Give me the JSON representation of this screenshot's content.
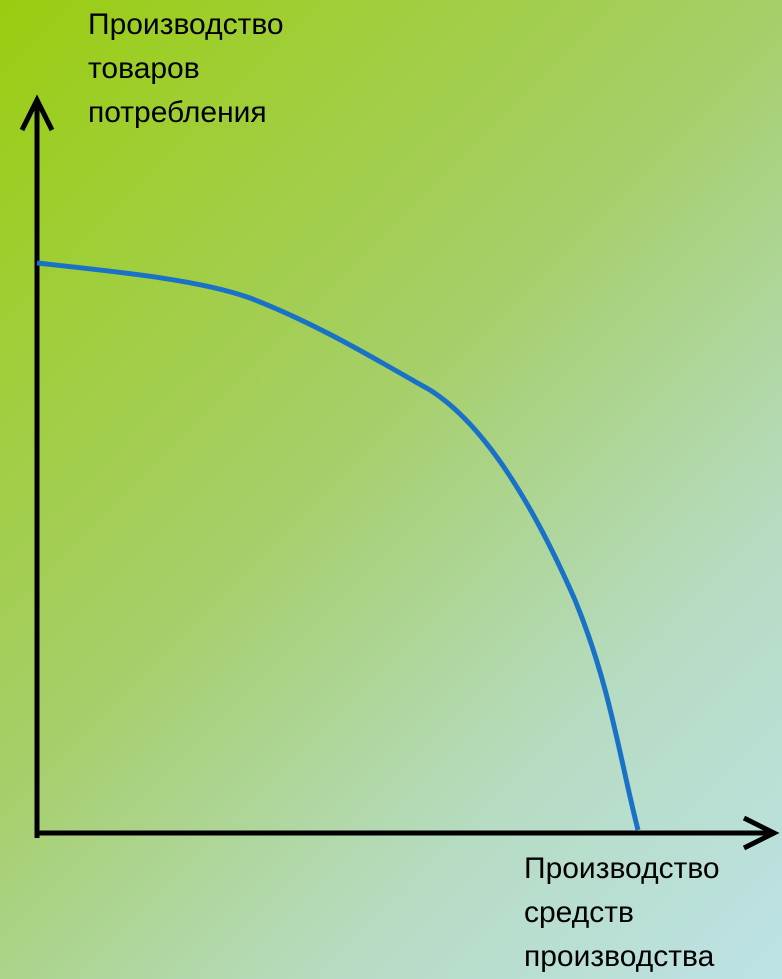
{
  "y_axis_label": [
    "Производство",
    "товаров",
    "потребления"
  ],
  "x_axis_label": [
    "Производство",
    "средств",
    "производства"
  ]
}
